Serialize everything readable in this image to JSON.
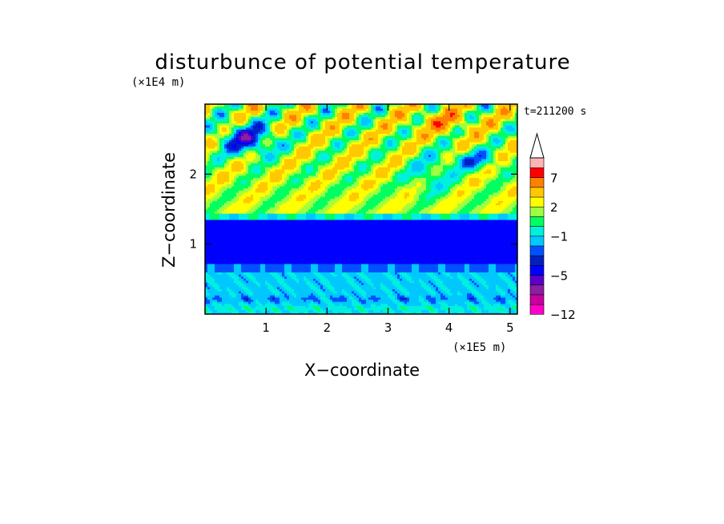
{
  "chart_data": {
    "type": "heatmap",
    "title": "disturbunce of potential temperature",
    "xlabel": "X−coordinate",
    "ylabel": "Z−coordinate",
    "x_scale_label": "(×1E5 m)",
    "y_scale_label": "(×1E4 m)",
    "time_label": "t=211200 s",
    "xlim": [
      0,
      5.12
    ],
    "ylim": [
      0,
      3.0
    ],
    "x_ticks": [
      1,
      2,
      3,
      4,
      5
    ],
    "x_tick_labels": [
      "1",
      "2",
      "3",
      "4",
      "5"
    ],
    "y_ticks": [
      1,
      2
    ],
    "y_tick_labels": [
      "1",
      "2"
    ],
    "colorbar": {
      "min": -12,
      "max": 12,
      "extend": "max",
      "labels": [
        {
          "value": 7,
          "text": "7"
        },
        {
          "value": 2,
          "text": "2"
        },
        {
          "value": -1,
          "text": "−1"
        },
        {
          "value": -5,
          "text": "−5"
        },
        {
          "value": -12,
          "text": "−12"
        }
      ],
      "levels": [
        -12,
        -9,
        -7,
        -6,
        -5,
        -4,
        -3,
        -2,
        -1,
        0,
        1,
        2,
        3,
        5,
        7,
        9,
        12
      ],
      "colors": [
        "#ff00c8",
        "#c800a0",
        "#8c1ea0",
        "#5a00c8",
        "#0000ff",
        "#0020c0",
        "#0050ff",
        "#00c8ff",
        "#00f0e0",
        "#00ff60",
        "#a0ff40",
        "#ffff00",
        "#ffc800",
        "#ff8000",
        "#ff0000",
        "#ffb4b4"
      ]
    },
    "field_description_rows": [
      {
        "z_range": [
          1.5,
          3.0
        ],
        "pattern": "wave-like alternating warm and cold anomalies"
      },
      {
        "z_range": [
          0.75,
          1.35
        ],
        "pattern": "cold anomaly band"
      },
      {
        "z_range": [
          0,
          0.75
        ],
        "pattern": "weak cold anomalies"
      }
    ]
  }
}
